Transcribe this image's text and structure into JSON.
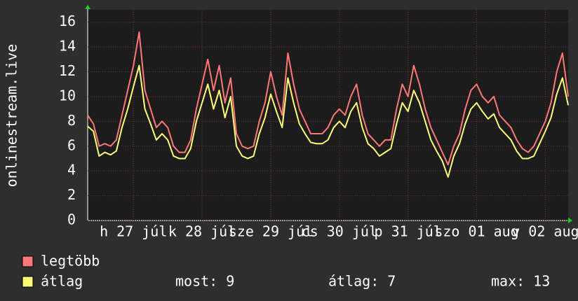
{
  "chart_data": {
    "type": "line",
    "y_label": "onlinestream.live",
    "ylim": [
      0,
      17
    ],
    "yticks": [
      0,
      2,
      4,
      6,
      8,
      10,
      12,
      14,
      16
    ],
    "xlim": [
      0,
      84
    ],
    "xticks": [
      {
        "value": 8,
        "label": "h 27 júl"
      },
      {
        "value": 20,
        "label": "k 28 júl"
      },
      {
        "value": 32,
        "label": "sze 29 júl"
      },
      {
        "value": 44,
        "label": "cs 30 júl"
      },
      {
        "value": 56,
        "label": "p 31 júl"
      },
      {
        "value": 68,
        "label": "szo 01 aug"
      },
      {
        "value": 80,
        "label": "v 02 aug"
      }
    ],
    "grid": true,
    "series": [
      {
        "name": "legtöbb",
        "color": "#ff7777",
        "values": [
          8.5,
          7.8,
          6.0,
          6.2,
          6.0,
          6.5,
          8.5,
          10.5,
          12.5,
          15.2,
          10.5,
          9.0,
          7.5,
          8.0,
          7.5,
          6.0,
          5.5,
          5.5,
          6.5,
          9.0,
          11.0,
          13.0,
          10.5,
          12.5,
          9.5,
          11.5,
          7.0,
          6.0,
          5.8,
          6.0,
          8.0,
          9.5,
          12.0,
          10.0,
          8.5,
          13.5,
          11.0,
          9.0,
          8.0,
          7.0,
          7.0,
          7.0,
          7.5,
          8.5,
          9.0,
          8.5,
          10.0,
          11.0,
          8.5,
          7.0,
          6.5,
          6.0,
          6.5,
          6.5,
          9.0,
          11.0,
          10.0,
          12.5,
          11.0,
          9.0,
          7.5,
          6.5,
          5.5,
          4.5,
          6.0,
          7.0,
          9.0,
          10.5,
          11.0,
          10.0,
          9.5,
          10.0,
          8.5,
          8.0,
          7.5,
          6.5,
          5.8,
          5.5,
          6.0,
          7.0,
          8.0,
          9.5,
          12.0,
          13.5,
          10.0
        ]
      },
      {
        "name": "átlag",
        "color": "#ffff77",
        "values": [
          7.6,
          7.2,
          5.2,
          5.5,
          5.3,
          5.6,
          7.5,
          9.0,
          10.8,
          12.5,
          9.0,
          7.8,
          6.5,
          7.0,
          6.5,
          5.2,
          5.0,
          5.0,
          5.8,
          8.0,
          9.5,
          11.0,
          9.0,
          10.5,
          8.3,
          10.0,
          6.0,
          5.2,
          5.0,
          5.2,
          7.0,
          8.3,
          10.2,
          8.8,
          7.5,
          11.5,
          9.5,
          7.8,
          7.0,
          6.3,
          6.2,
          6.2,
          6.5,
          7.5,
          8.0,
          7.5,
          8.8,
          9.5,
          7.5,
          6.2,
          5.8,
          5.2,
          5.5,
          5.8,
          7.8,
          9.5,
          8.8,
          10.5,
          9.5,
          8.0,
          6.5,
          5.6,
          4.8,
          3.5,
          5.2,
          6.2,
          7.8,
          9.0,
          9.5,
          8.8,
          8.2,
          8.6,
          7.5,
          7.0,
          6.5,
          5.6,
          5.0,
          5.0,
          5.2,
          6.2,
          7.2,
          8.3,
          10.2,
          11.5,
          9.3
        ]
      }
    ],
    "stats": [
      {
        "label": "most:",
        "value": 9
      },
      {
        "label": "átlag:",
        "value": 7
      },
      {
        "label": "max:",
        "value": 13
      }
    ]
  }
}
